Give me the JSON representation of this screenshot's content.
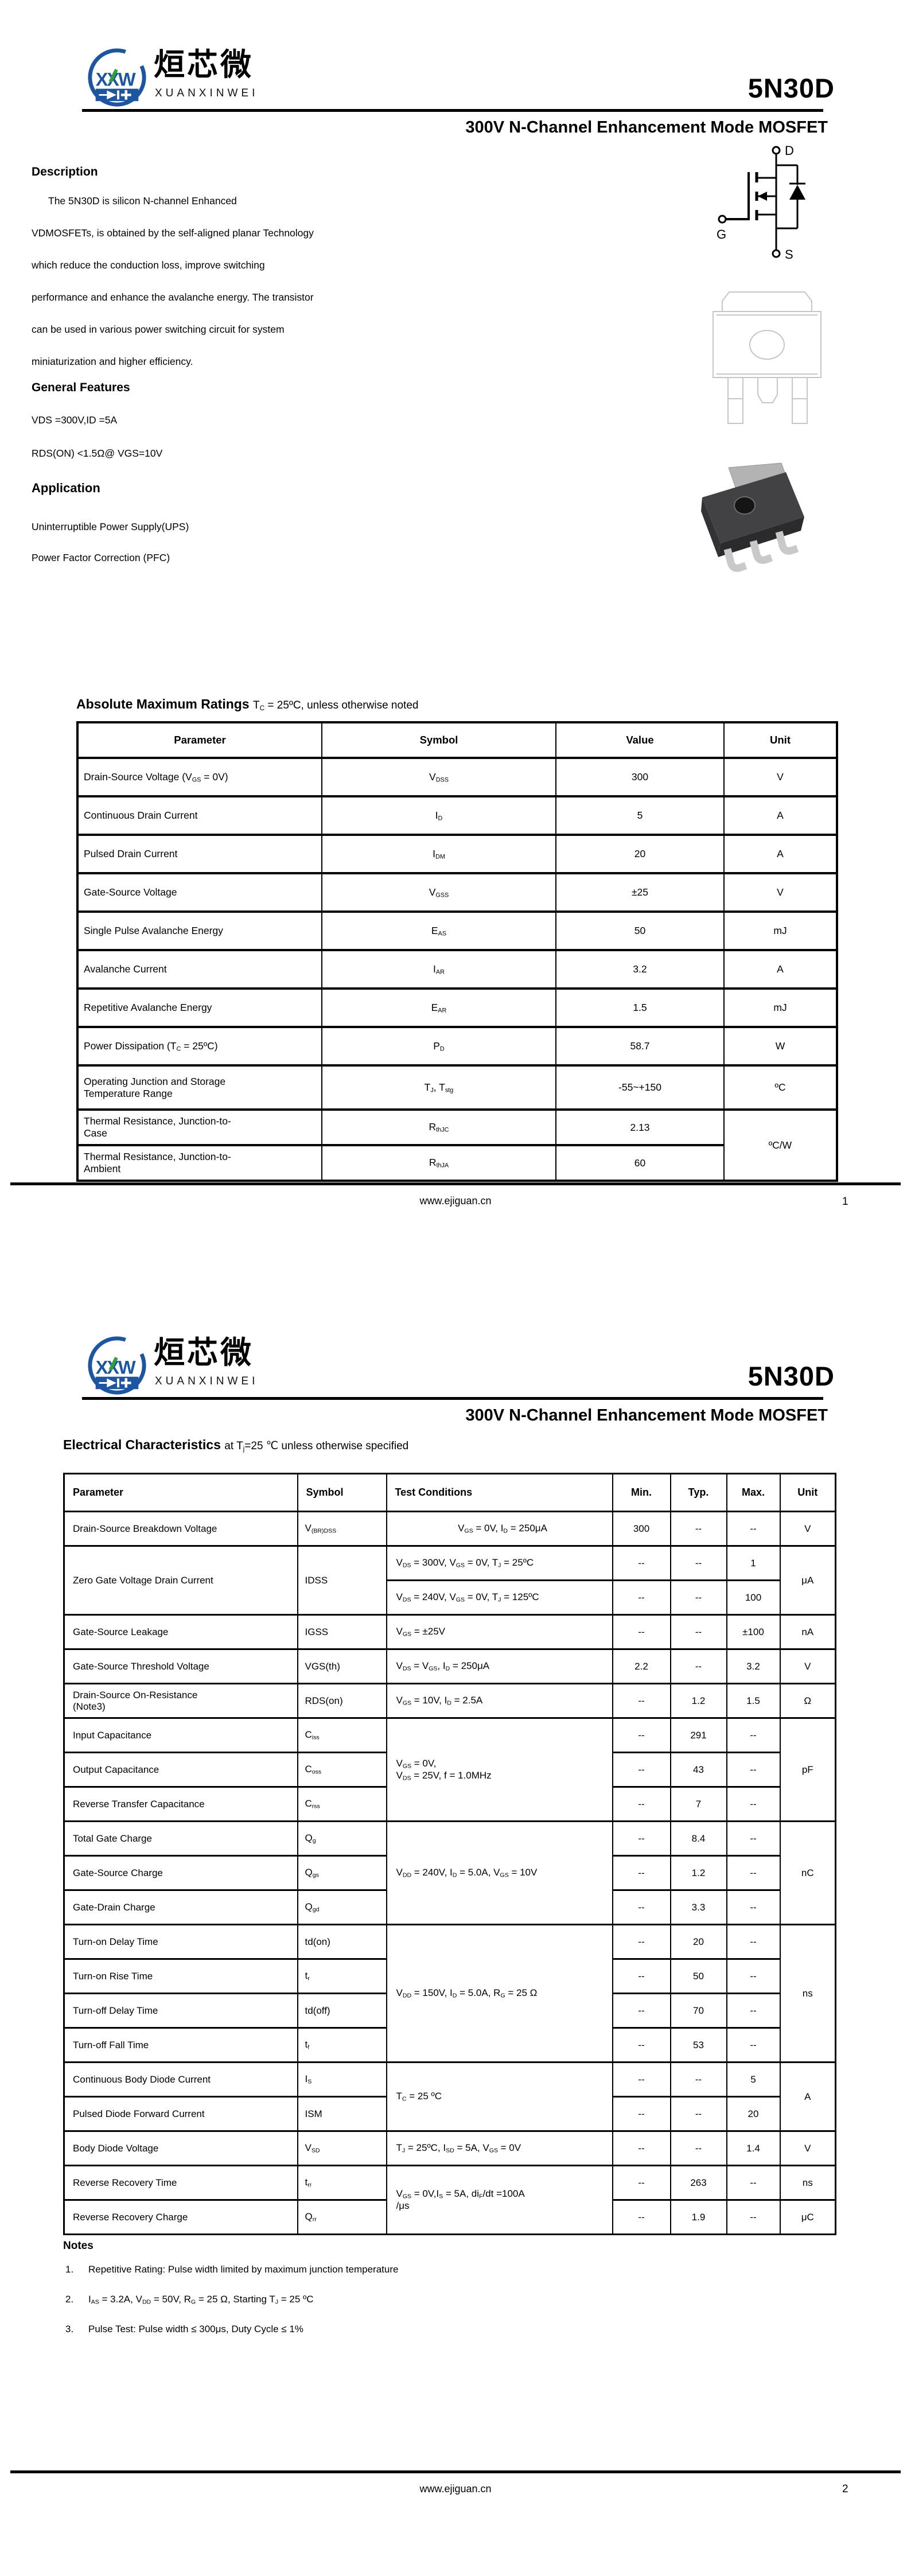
{
  "brand": {
    "logo_monogram": "XXW",
    "logo_text_cn": "烜芯微",
    "logo_text_en": "XUANXINWEI",
    "part_number": "5N30D",
    "subtitle": "300V N-Channel Enhancement Mode MOSFET"
  },
  "colors": {
    "logo_blue": "#1d55a0",
    "logo_green": "#2f9e3f",
    "package_body": "#424245",
    "package_tab": "#b3b3b3",
    "lead_silver": "#c9c9c9",
    "outline_gray": "#c6c6c6"
  },
  "page1": {
    "description": {
      "heading": "Description",
      "lines": [
        "The 5N30D is silicon N-channel Enhanced",
        "VDMOSFETs, is obtained by the self-aligned planar Technology",
        "which reduce the conduction loss, improve switching",
        "performance and enhance the avalanche energy. The transistor",
        "can be used in various power switching circuit for system",
        "miniaturization and higher efficiency."
      ]
    },
    "general_features": {
      "heading": "General Features",
      "lines": [
        "VDS =300V,ID =5A",
        "RDS(ON) <1.5Ω@ VGS=10V"
      ]
    },
    "application": {
      "heading": "Application",
      "lines": [
        "Uninterruptible Power Supply(UPS)",
        "Power Factor Correction (PFC)"
      ]
    },
    "mosfet_symbol": {
      "drain": "D",
      "gate": "G",
      "source": "S"
    },
    "abs_max": {
      "heading": "Absolute Maximum Ratings",
      "condition": "T_C_ = 25ºC, unless otherwise noted",
      "headers": [
        "Parameter",
        "Symbol",
        "Value",
        "Unit"
      ],
      "rows": [
        {
          "param": "Drain-Source Voltage (V_GS_ = 0V)",
          "symbol": "V_DSS_",
          "value": "300",
          "unit": "V"
        },
        {
          "param": "Continuous Drain Current",
          "symbol": "I_D_",
          "value": "5",
          "unit": "A"
        },
        {
          "param": "Pulsed Drain Current",
          "symbol": "I_DM_",
          "value": "20",
          "unit": "A"
        },
        {
          "param": "Gate-Source Voltage",
          "symbol": "V_GSS_",
          "value": "±25",
          "unit": "V"
        },
        {
          "param": "Single Pulse Avalanche Energy",
          "symbol": "E_AS_",
          "value": "50",
          "unit": "mJ"
        },
        {
          "param": "Avalanche Current",
          "symbol": "I_AR_",
          "value": "3.2",
          "unit": "A"
        },
        {
          "param": "Repetitive Avalanche Energy",
          "symbol": "E_AR_",
          "value": "1.5",
          "unit": "mJ"
        },
        {
          "param": "Power Dissipation (T_C_ = 25ºC)",
          "symbol": "P_D_",
          "value": "58.7",
          "unit": "W"
        },
        {
          "param": "Operating Junction and Storage\nTemperature Range",
          "symbol": "T_J_, T_stg_",
          "value": "-55~+150",
          "unit": "ºC"
        },
        {
          "param": "Thermal Resistance, Junction-to-\nCase",
          "symbol": "R_thJC_",
          "value": "2.13",
          "unit": "ºC/W"
        },
        {
          "param": "Thermal Resistance, Junction-to-\nAmbient",
          "symbol": "R_thJA_",
          "value": "60"
        }
      ]
    },
    "footer": {
      "url": "www.ejiguan.cn",
      "page": "1"
    }
  },
  "page2": {
    "ec": {
      "heading": "Electrical Characteristics",
      "condition": "at T_j_=25 ℃ unless otherwise specified",
      "headers": [
        "Parameter",
        "Symbol",
        "Test Conditions",
        "Min.",
        "Typ.",
        "Max.",
        "Unit"
      ],
      "rows": [
        {
          "param": "Drain-Source Breakdown Voltage",
          "symbol": "V_(BR)DSS_",
          "cond": "V_GS_ = 0V, I_D_ = 250μA",
          "min": "300",
          "typ": "--",
          "max": "--",
          "unit": "V"
        },
        {
          "param": "Zero Gate Voltage Drain Current",
          "symbol": "IDSS",
          "cond": "V_DS_ = 300V, V_GS_ = 0V, T_J_ = 25ºC",
          "min": "--",
          "typ": "--",
          "max": "1",
          "unit": "μA"
        },
        {
          "cond": "V_DS_ = 240V, V_GS_ = 0V, T_J_ = 125ºC",
          "min": "--",
          "typ": "--",
          "max": "100"
        },
        {
          "param": "Gate-Source Leakage",
          "symbol": "IGSS",
          "cond": "V_GS_ = ±25V",
          "min": "--",
          "typ": "--",
          "max": "±100",
          "unit": "nA"
        },
        {
          "param": "Gate-Source Threshold Voltage",
          "symbol": "VGS(th)",
          "cond": "V_DS_ = V_GS_, I_D_ = 250μA",
          "min": "2.2",
          "typ": "--",
          "max": "3.2",
          "unit": "V"
        },
        {
          "param": "Drain-Source On-Resistance\n(Note3)",
          "symbol": "RDS(on)",
          "cond": "V_GS_ = 10V, I_D_ = 2.5A",
          "min": "--",
          "typ": "1.2",
          "max": "1.5",
          "unit": "Ω"
        },
        {
          "param": "Input Capacitance",
          "symbol": "C_iss_",
          "cond": "V_GS_ = 0V,\nV_DS_ = 25V, f = 1.0MHz",
          "min": "--",
          "typ": "291",
          "max": "--",
          "unit": "pF"
        },
        {
          "param": "Output Capacitance",
          "symbol": "C_oss_",
          "min": "--",
          "typ": "43",
          "max": "--"
        },
        {
          "param": "Reverse Transfer Capacitance",
          "symbol": "C_rss_",
          "min": "--",
          "typ": "7",
          "max": "--"
        },
        {
          "param": "Total Gate Charge",
          "symbol": "Q_g_",
          "cond": "V_DD_ = 240V, I_D_ = 5.0A, V_GS_ = 10V",
          "min": "--",
          "typ": "8.4",
          "max": "--",
          "unit": "nC"
        },
        {
          "param": "Gate-Source Charge",
          "symbol": "Q_gs_",
          "min": "--",
          "typ": "1.2",
          "max": "--"
        },
        {
          "param": "Gate-Drain Charge",
          "symbol": "Q_gd_",
          "min": "--",
          "typ": "3.3",
          "max": "--"
        },
        {
          "param": "Turn-on Delay Time",
          "symbol": "td(on)",
          "cond": "V_DD_ = 150V, I_D_ = 5.0A, R_G_ = 25 Ω",
          "min": "--",
          "typ": "20",
          "max": "--",
          "unit": "ns"
        },
        {
          "param": "Turn-on Rise Time",
          "symbol": "t_r_",
          "min": "--",
          "typ": "50",
          "max": "--"
        },
        {
          "param": "Turn-off Delay Time",
          "symbol": "td(off)",
          "min": "--",
          "typ": "70",
          "max": "--"
        },
        {
          "param": "Turn-off Fall Time",
          "symbol": "t_f_",
          "min": "--",
          "typ": "53",
          "max": "--"
        },
        {
          "param": "Continuous Body Diode Current",
          "symbol": "I_S_",
          "cond": "T_C_ = 25 ºC",
          "min": "--",
          "typ": "--",
          "max": "5",
          "unit": "A"
        },
        {
          "param": "Pulsed Diode Forward Current",
          "symbol": "ISM",
          "min": "--",
          "typ": "--",
          "max": "20"
        },
        {
          "param": "Body Diode Voltage",
          "symbol": "V_SD_",
          "cond": "T_J_ = 25ºC, I_SD_ = 5A, V_GS_ = 0V",
          "min": "--",
          "typ": "--",
          "max": "1.4",
          "unit": "V"
        },
        {
          "param": "Reverse Recovery Time",
          "symbol": "t_rr_",
          "cond": "V_GS_ = 0V,I_S_ = 5A, di_F_/dt =100A\n/μs",
          "min": "--",
          "typ": "263",
          "max": "--",
          "unit": "ns"
        },
        {
          "param": "Reverse Recovery Charge",
          "symbol": "Q_rr_",
          "min": "--",
          "typ": "1.9",
          "max": "--",
          "unit": "μC"
        }
      ]
    },
    "notes": {
      "heading": "Notes",
      "items": [
        {
          "num": "1.",
          "text": "Repetitive Rating: Pulse width limited by maximum junction temperature"
        },
        {
          "num": "2.",
          "text": "I_AS_ = 3.2A, V_DD_ = 50V, R_G_ = 25 Ω, Starting T_J_ = 25 ºC"
        },
        {
          "num": "3.",
          "text": "Pulse Test: Pulse width ≤ 300μs, Duty Cycle ≤ 1%"
        }
      ]
    },
    "footer": {
      "url": "www.ejiguan.cn",
      "page": "2"
    }
  }
}
